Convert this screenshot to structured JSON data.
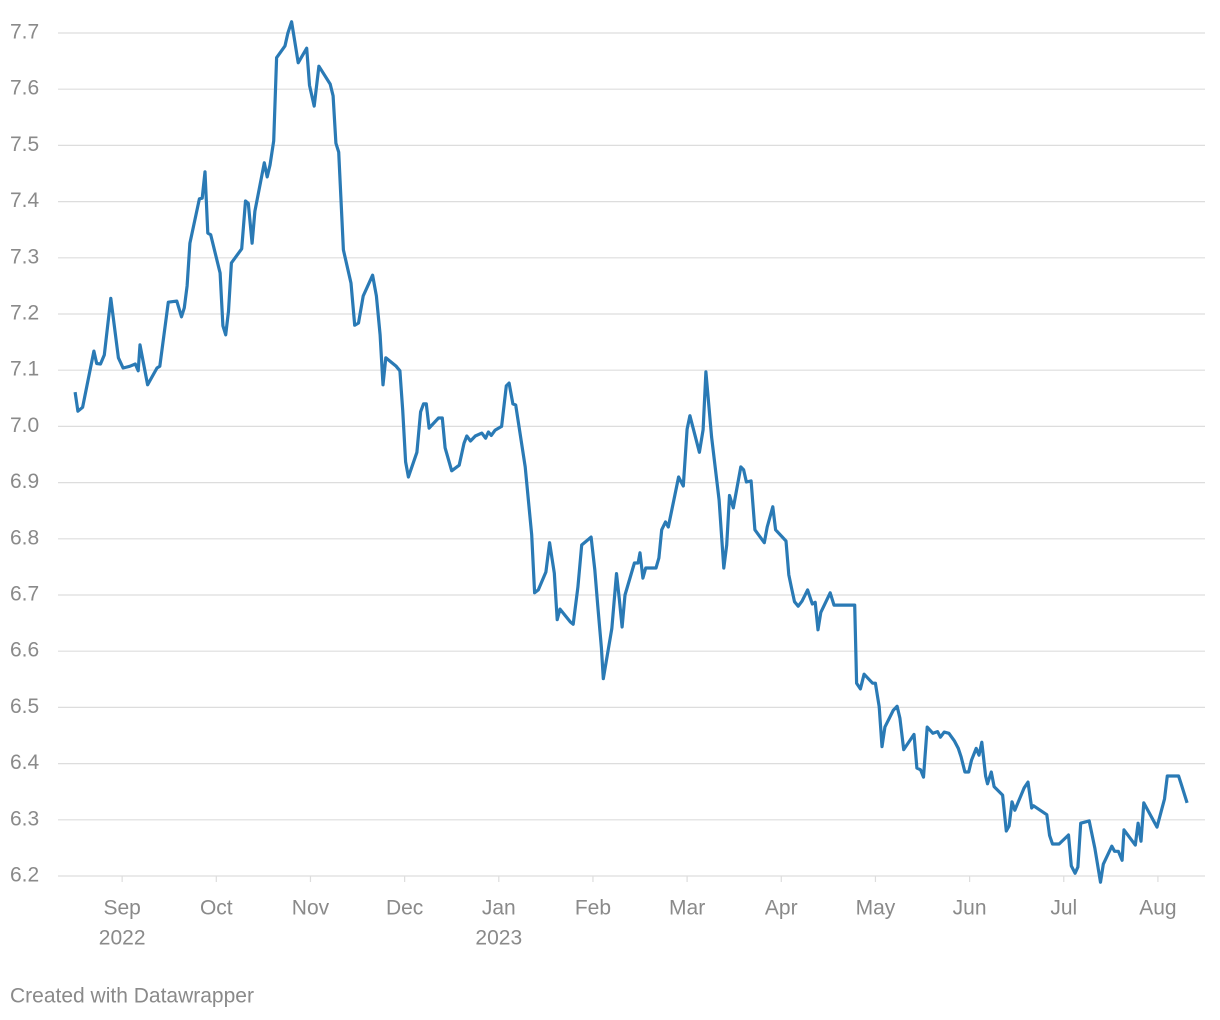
{
  "chart_data": {
    "type": "line",
    "x": [
      -0.5,
      -0.47,
      -0.42,
      -0.3,
      -0.27,
      -0.23,
      -0.19,
      -0.12,
      -0.04,
      0.01,
      0.08,
      0.14,
      0.17,
      0.19,
      0.27,
      0.37,
      0.4,
      0.49,
      0.58,
      0.63,
      0.66,
      0.69,
      0.72,
      0.82,
      0.85,
      0.88,
      0.91,
      0.94,
      1.04,
      1.07,
      1.1,
      1.13,
      1.16,
      1.27,
      1.31,
      1.34,
      1.38,
      1.41,
      1.51,
      1.54,
      1.57,
      1.61,
      1.64,
      1.73,
      1.76,
      1.8,
      1.87,
      1.96,
      1.99,
      2.04,
      2.09,
      2.21,
      2.24,
      2.27,
      2.3,
      2.35,
      2.43,
      2.47,
      2.51,
      2.56,
      2.66,
      2.7,
      2.74,
      2.77,
      2.8,
      2.91,
      2.95,
      2.98,
      3.01,
      3.04,
      3.13,
      3.17,
      3.2,
      3.23,
      3.26,
      3.36,
      3.4,
      3.43,
      3.5,
      3.58,
      3.63,
      3.66,
      3.7,
      3.75,
      3.82,
      3.86,
      3.89,
      3.92,
      3.96,
      4.03,
      4.08,
      4.11,
      4.15,
      4.18,
      4.28,
      4.35,
      4.38,
      4.42,
      4.5,
      4.54,
      4.59,
      4.62,
      4.65,
      4.76,
      4.79,
      4.84,
      4.88,
      4.98,
      5.02,
      5.05,
      5.09,
      5.11,
      5.2,
      5.25,
      5.28,
      5.31,
      5.34,
      5.44,
      5.48,
      5.5,
      5.53,
      5.56,
      5.67,
      5.7,
      5.73,
      5.77,
      5.8,
      5.91,
      5.96,
      6.0,
      6.03,
      6.13,
      6.17,
      6.2,
      6.26,
      6.34,
      6.37,
      6.39,
      6.42,
      6.45,
      6.49,
      6.57,
      6.6,
      6.63,
      6.68,
      6.72,
      6.82,
      6.85,
      6.91,
      6.94,
      7.05,
      7.08,
      7.11,
      7.14,
      7.18,
      7.22,
      7.28,
      7.33,
      7.36,
      7.39,
      7.42,
      7.52,
      7.56,
      7.75,
      7.78,
      7.8,
      7.84,
      7.88,
      7.97,
      8.0,
      8.04,
      8.07,
      8.1,
      8.19,
      8.23,
      8.26,
      8.3,
      8.41,
      8.44,
      8.48,
      8.51,
      8.55,
      8.61,
      8.66,
      8.69,
      8.73,
      8.78,
      8.84,
      8.88,
      8.91,
      8.95,
      8.99,
      9.02,
      9.07,
      9.1,
      9.13,
      9.17,
      9.19,
      9.23,
      9.26,
      9.35,
      9.39,
      9.42,
      9.45,
      9.48,
      9.58,
      9.62,
      9.66,
      9.68,
      9.82,
      9.85,
      9.88,
      9.95,
      10.05,
      10.08,
      10.12,
      10.15,
      10.18,
      10.27,
      10.33,
      10.39,
      10.42,
      10.51,
      10.54,
      10.58,
      10.62,
      10.64,
      10.76,
      10.79,
      10.82,
      10.85,
      10.99,
      11.07,
      11.1,
      11.22,
      11.25,
      11.31
    ],
    "series": [
      {
        "color": "#2a7ab5",
        "values": [
          7.061,
          7.027,
          7.034,
          7.134,
          7.112,
          7.111,
          7.127,
          7.228,
          7.122,
          7.104,
          7.107,
          7.111,
          7.099,
          7.145,
          7.074,
          7.104,
          7.107,
          7.221,
          7.223,
          7.195,
          7.211,
          7.25,
          7.326,
          7.405,
          7.406,
          7.453,
          7.344,
          7.341,
          7.273,
          7.179,
          7.163,
          7.205,
          7.291,
          7.316,
          7.401,
          7.397,
          7.326,
          7.383,
          7.469,
          7.444,
          7.465,
          7.508,
          7.656,
          7.677,
          7.7,
          7.72,
          7.647,
          7.673,
          7.607,
          7.57,
          7.641,
          7.609,
          7.588,
          7.504,
          7.488,
          7.314,
          7.255,
          7.18,
          7.184,
          7.232,
          7.269,
          7.232,
          7.163,
          7.074,
          7.122,
          7.107,
          7.099,
          7.029,
          6.937,
          6.91,
          6.954,
          7.026,
          7.04,
          7.04,
          6.997,
          7.015,
          7.015,
          6.962,
          6.921,
          6.931,
          6.97,
          6.983,
          6.974,
          6.983,
          6.988,
          6.979,
          6.99,
          6.984,
          6.993,
          7.0,
          7.072,
          7.077,
          7.04,
          7.038,
          6.928,
          6.807,
          6.704,
          6.709,
          6.741,
          6.793,
          6.739,
          6.656,
          6.675,
          6.652,
          6.648,
          6.714,
          6.789,
          6.803,
          6.745,
          6.682,
          6.606,
          6.551,
          6.64,
          6.738,
          6.693,
          6.643,
          6.7,
          6.757,
          6.757,
          6.775,
          6.73,
          6.748,
          6.748,
          6.766,
          6.816,
          6.83,
          6.821,
          6.91,
          6.894,
          6.995,
          7.019,
          6.954,
          6.994,
          7.097,
          6.981,
          6.869,
          6.794,
          6.748,
          6.789,
          6.877,
          6.855,
          6.928,
          6.923,
          6.901,
          6.903,
          6.816,
          6.793,
          6.821,
          6.857,
          6.816,
          6.796,
          6.736,
          6.712,
          6.688,
          6.68,
          6.689,
          6.709,
          6.684,
          6.687,
          6.638,
          6.669,
          6.704,
          6.682,
          6.682,
          6.682,
          6.543,
          6.533,
          6.559,
          6.543,
          6.543,
          6.501,
          6.43,
          6.465,
          6.495,
          6.502,
          6.481,
          6.425,
          6.452,
          6.392,
          6.389,
          6.376,
          6.465,
          6.454,
          6.457,
          6.447,
          6.456,
          6.454,
          6.44,
          6.427,
          6.412,
          6.385,
          6.385,
          6.406,
          6.427,
          6.415,
          6.438,
          6.378,
          6.364,
          6.385,
          6.359,
          6.344,
          6.28,
          6.289,
          6.332,
          6.317,
          6.357,
          6.367,
          6.321,
          6.325,
          6.309,
          6.272,
          6.257,
          6.257,
          6.273,
          6.218,
          6.205,
          6.216,
          6.294,
          6.298,
          6.25,
          6.189,
          6.221,
          6.253,
          6.244,
          6.244,
          6.228,
          6.282,
          6.255,
          6.294,
          6.262,
          6.33,
          6.287,
          6.337,
          6.378,
          6.378,
          6.362,
          6.33
        ]
      }
    ],
    "xlim": [
      -0.66,
      11.5
    ],
    "xticks": [
      {
        "value": 0,
        "label": "Sep",
        "year": "2022"
      },
      {
        "value": 1,
        "label": "Oct"
      },
      {
        "value": 2,
        "label": "Nov"
      },
      {
        "value": 3,
        "label": "Dec"
      },
      {
        "value": 4,
        "label": "Jan",
        "year": "2023"
      },
      {
        "value": 5,
        "label": "Feb"
      },
      {
        "value": 6,
        "label": "Mar"
      },
      {
        "value": 7,
        "label": "Apr"
      },
      {
        "value": 8,
        "label": "May"
      },
      {
        "value": 9,
        "label": "Jun"
      },
      {
        "value": 10,
        "label": "Jul"
      },
      {
        "value": 11,
        "label": "Aug"
      }
    ],
    "ylim": [
      6.2,
      7.7
    ],
    "yticks": [
      6.2,
      6.3,
      6.4,
      6.5,
      6.6,
      6.7,
      6.8,
      6.9,
      {
        "value": 7,
        "label": "7.0"
      },
      7.1,
      7.2,
      7.3,
      7.4,
      7.5,
      7.6,
      7.7
    ],
    "grid": true,
    "credit": "Created with Datawrapper"
  }
}
